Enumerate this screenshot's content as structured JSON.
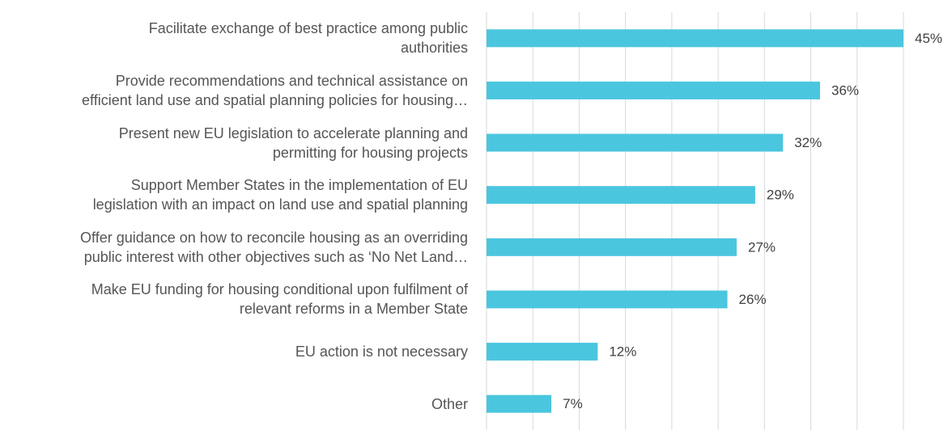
{
  "chart_data": {
    "type": "hbar",
    "categories": [
      "Facilitate exchange of best practice among public\nauthorities",
      "Provide recommendations and technical assistance on\nefficient land use and spatial planning policies for housing…",
      "Present new EU legislation to accelerate planning and\npermitting for housing projects",
      "Support Member States in the implementation of EU\nlegislation with an impact on land use and spatial planning",
      "Offer guidance on how to reconcile housing as an overriding\npublic interest with other objectives such as ‘No Net Land…",
      "Make EU funding for housing conditional upon fulfilment of\nrelevant reforms in a Member State",
      "EU action is not necessary",
      "Other"
    ],
    "values": [
      45,
      36,
      32,
      29,
      27,
      26,
      12,
      7
    ],
    "value_labels": [
      "45%",
      "36%",
      "32%",
      "29%",
      "27%",
      "26%",
      "12%",
      "7%"
    ],
    "color": "#4bc6df",
    "xlim": [
      0,
      45
    ],
    "xticks": [
      0,
      5,
      10,
      15,
      20,
      25,
      30,
      35,
      40,
      45
    ],
    "grid": true
  }
}
